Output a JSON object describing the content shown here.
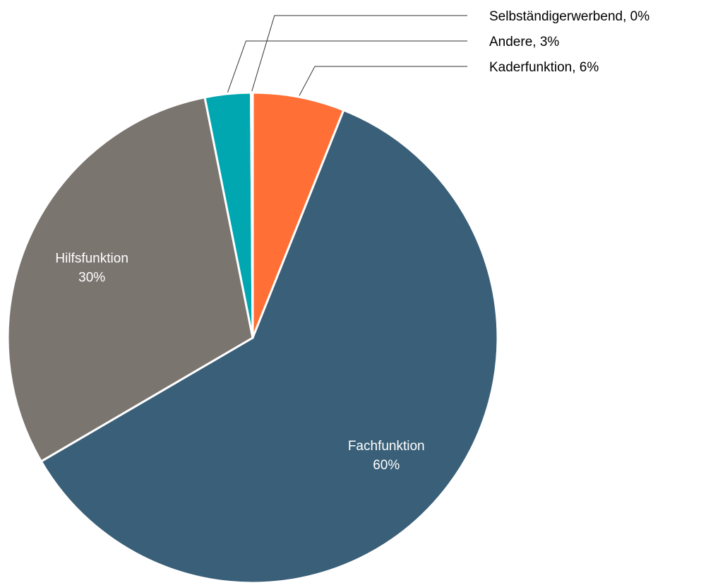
{
  "chart_data": {
    "type": "pie",
    "title": "",
    "slices": [
      {
        "name": "Kaderfunktion",
        "value": 6,
        "label": "Kaderfunktion, 6%",
        "color": "#FF6F36",
        "label_placement": "outside"
      },
      {
        "name": "Fachfunktion",
        "value": 60,
        "label_name": "Fachfunktion",
        "label_pct": "60%",
        "color": "#3A5F78",
        "label_placement": "inside"
      },
      {
        "name": "Hilfsfunktion",
        "value": 30,
        "label_name": "Hilfsfunktion",
        "label_pct": "30%",
        "color": "#7B7570",
        "label_placement": "inside"
      },
      {
        "name": "Andere",
        "value": 3,
        "label": "Andere, 3%",
        "color": "#00A7B0",
        "label_placement": "outside"
      },
      {
        "name": "Selbständigerwerbend",
        "value": 0,
        "label": "Selbständigerwerbend, 0%",
        "color": "#2E8B57",
        "label_placement": "outside"
      }
    ],
    "legend": "none",
    "start_angle": "12 o'clock, clockwise"
  }
}
